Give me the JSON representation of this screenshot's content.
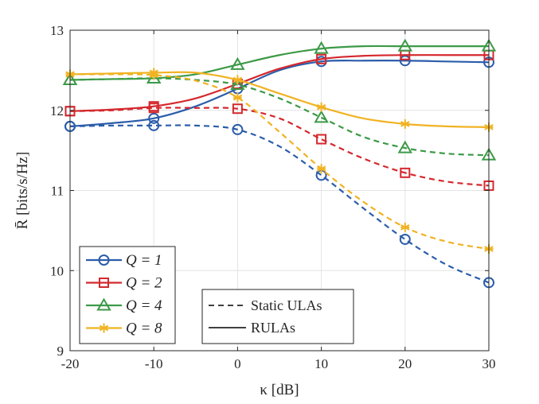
{
  "chart_data": {
    "type": "line",
    "xlabel": "κ [dB]",
    "ylabel": "R̄ [bits/s/Hz]",
    "xlim": [
      -20,
      30
    ],
    "ylim": [
      9,
      13
    ],
    "xticks": [
      -20,
      -10,
      0,
      10,
      20,
      30
    ],
    "xtick_labels": [
      "-20",
      "-10",
      "0",
      "10",
      "20",
      "30"
    ],
    "yticks": [
      9,
      10,
      11,
      12,
      13
    ],
    "ytick_labels": [
      "9",
      "10",
      "11",
      "12",
      "13"
    ],
    "grid": true,
    "x": [
      -20,
      -15,
      -10,
      -5,
      0,
      5,
      10,
      15,
      20,
      25,
      30
    ],
    "marker_x": [
      -20,
      -10,
      0,
      10,
      20,
      30
    ],
    "series": [
      {
        "name": "Q = 1",
        "group": "Q1",
        "style": "solid",
        "marker": "circle",
        "color": "#2B5DAA",
        "values": [
          11.8,
          11.84,
          11.9,
          12.05,
          12.27,
          12.5,
          12.61,
          12.62,
          12.62,
          12.61,
          12.6
        ]
      },
      {
        "name": "Q = 1",
        "group": "Q1",
        "style": "dashed",
        "marker": "circle",
        "color": "#2B5DAA",
        "values": [
          11.8,
          11.81,
          11.81,
          11.81,
          11.76,
          11.55,
          11.19,
          10.78,
          10.39,
          10.07,
          9.85
        ]
      },
      {
        "name": "Q = 2",
        "group": "Q2",
        "style": "solid",
        "marker": "square",
        "color": "#D4282D",
        "values": [
          11.99,
          12.01,
          12.05,
          12.15,
          12.33,
          12.52,
          12.64,
          12.68,
          12.69,
          12.69,
          12.69
        ]
      },
      {
        "name": "Q = 2",
        "group": "Q2",
        "style": "dashed",
        "marker": "square",
        "color": "#D4282D",
        "values": [
          11.99,
          12.0,
          12.03,
          12.03,
          12.02,
          11.9,
          11.64,
          11.4,
          11.22,
          11.11,
          11.06
        ]
      },
      {
        "name": "Q = 4",
        "group": "Q4",
        "style": "solid",
        "marker": "triangle",
        "color": "#3C9A47",
        "values": [
          12.38,
          12.39,
          12.4,
          12.45,
          12.57,
          12.69,
          12.77,
          12.8,
          12.8,
          12.8,
          12.8
        ]
      },
      {
        "name": "Q = 4",
        "group": "Q4",
        "style": "dashed",
        "marker": "triangle",
        "color": "#3C9A47",
        "values": [
          12.38,
          12.39,
          12.4,
          12.38,
          12.32,
          12.15,
          11.91,
          11.67,
          11.53,
          11.46,
          11.44
        ]
      },
      {
        "name": "Q = 8",
        "group": "Q8",
        "style": "solid",
        "marker": "asterisk",
        "color": "#F0B323",
        "values": [
          12.45,
          12.46,
          12.47,
          12.47,
          12.38,
          12.21,
          12.04,
          11.9,
          11.83,
          11.8,
          11.79
        ]
      },
      {
        "name": "Q = 8",
        "group": "Q8",
        "style": "dashed",
        "marker": "asterisk",
        "color": "#F0B323",
        "values": [
          12.45,
          12.45,
          12.44,
          12.37,
          12.16,
          11.73,
          11.27,
          10.86,
          10.54,
          10.36,
          10.27
        ]
      }
    ],
    "legend_q": {
      "position": "bottom-left",
      "entries": [
        {
          "label": "Q = 1",
          "marker": "circle",
          "color": "#2B5DAA"
        },
        {
          "label": "Q = 2",
          "marker": "square",
          "color": "#D4282D"
        },
        {
          "label": "Q = 4",
          "marker": "triangle",
          "color": "#3C9A47"
        },
        {
          "label": "Q = 8",
          "marker": "asterisk",
          "color": "#F0B323"
        }
      ]
    },
    "legend_style": {
      "position": "bottom-center",
      "entries": [
        {
          "label": "Static ULAs",
          "style": "dashed"
        },
        {
          "label": "RULAs",
          "style": "solid"
        }
      ]
    }
  }
}
